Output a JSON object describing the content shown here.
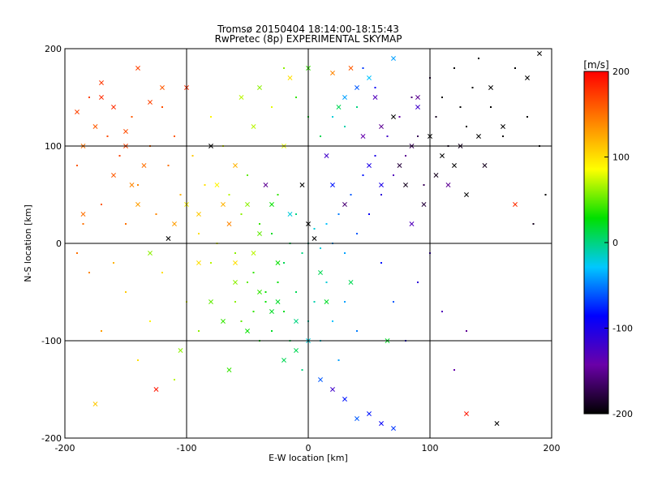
{
  "chart_data": {
    "type": "scatter",
    "title": "Tromsø 20150404 18:14:00-18:15:43",
    "subtitle": "RwPretec (8p) EXPERIMENTAL SKYMAP",
    "xlabel": "E-W location [km]",
    "ylabel": "N-S location [km]",
    "xlim": [
      -200,
      200
    ],
    "ylim": [
      -200,
      200
    ],
    "xticks": [
      "-200",
      "-100",
      "0",
      "100",
      "200"
    ],
    "yticks": [
      "-200",
      "-100",
      "0",
      "100",
      "200"
    ],
    "grid": true,
    "colorbar": {
      "label": "[m/s]",
      "range": [
        -200,
        200
      ],
      "ticks": [
        "200",
        "100",
        "0",
        "-100",
        "-200"
      ],
      "colors": [
        "#000000",
        "#6a00a8",
        "#0000ff",
        "#00c8ff",
        "#00e000",
        "#ffff00",
        "#ff8000",
        "#ff0000"
      ]
    },
    "series": [
      {
        "marker": "x",
        "points": [
          [
            -190,
            135,
            170
          ],
          [
            -185,
            100,
            150
          ],
          [
            -175,
            120,
            160
          ],
          [
            -170,
            165,
            175
          ],
          [
            -160,
            140,
            180
          ],
          [
            -150,
            115,
            165
          ],
          [
            -145,
            60,
            140
          ],
          [
            -140,
            40,
            130
          ],
          [
            -135,
            80,
            150
          ],
          [
            -130,
            145,
            170
          ],
          [
            -120,
            160,
            160
          ],
          [
            -115,
            5,
            -200
          ],
          [
            -110,
            20,
            130
          ],
          [
            -100,
            160,
            180
          ],
          [
            -90,
            30,
            110
          ],
          [
            -80,
            100,
            -200
          ],
          [
            -75,
            60,
            90
          ],
          [
            -70,
            40,
            120
          ],
          [
            -65,
            20,
            140
          ],
          [
            -60,
            -20,
            100
          ],
          [
            -55,
            150,
            70
          ],
          [
            -50,
            40,
            60
          ],
          [
            -45,
            120,
            70
          ],
          [
            -40,
            10,
            50
          ],
          [
            -35,
            60,
            -150
          ],
          [
            -30,
            40,
            30
          ],
          [
            -25,
            -60,
            20
          ],
          [
            -20,
            100,
            80
          ],
          [
            -15,
            30,
            -20
          ],
          [
            -10,
            -110,
            10
          ],
          [
            -5,
            60,
            -200
          ],
          [
            0,
            20,
            -200
          ],
          [
            5,
            5,
            -200
          ],
          [
            10,
            -30,
            10
          ],
          [
            15,
            90,
            -120
          ],
          [
            20,
            60,
            -80
          ],
          [
            25,
            140,
            10
          ],
          [
            30,
            40,
            -160
          ],
          [
            35,
            180,
            160
          ],
          [
            40,
            160,
            -60
          ],
          [
            45,
            110,
            -140
          ],
          [
            50,
            80,
            -100
          ],
          [
            55,
            150,
            -130
          ],
          [
            60,
            120,
            -150
          ],
          [
            65,
            -100,
            20
          ],
          [
            70,
            130,
            -200
          ],
          [
            75,
            80,
            -180
          ],
          [
            80,
            60,
            -190
          ],
          [
            85,
            100,
            -170
          ],
          [
            90,
            150,
            -150
          ],
          [
            95,
            40,
            -180
          ],
          [
            100,
            110,
            -200
          ],
          [
            105,
            70,
            -190
          ],
          [
            110,
            90,
            -200
          ],
          [
            115,
            60,
            -150
          ],
          [
            120,
            80,
            -200
          ],
          [
            125,
            100,
            -190
          ],
          [
            130,
            50,
            -200
          ],
          [
            140,
            110,
            -200
          ],
          [
            145,
            80,
            -190
          ],
          [
            150,
            160,
            -200
          ],
          [
            160,
            120,
            -200
          ],
          [
            170,
            40,
            180
          ],
          [
            180,
            170,
            -200
          ],
          [
            190,
            195,
            -200
          ],
          [
            -175,
            -165,
            110
          ],
          [
            -125,
            -150,
            190
          ],
          [
            -105,
            -110,
            60
          ],
          [
            -90,
            -20,
            100
          ],
          [
            -80,
            -60,
            50
          ],
          [
            -70,
            -80,
            40
          ],
          [
            -60,
            -40,
            60
          ],
          [
            -50,
            -90,
            30
          ],
          [
            -40,
            -50,
            40
          ],
          [
            -30,
            -70,
            20
          ],
          [
            -20,
            -120,
            10
          ],
          [
            -10,
            -80,
            0
          ],
          [
            0,
            -100,
            -20
          ],
          [
            10,
            -140,
            -60
          ],
          [
            20,
            -150,
            -120
          ],
          [
            30,
            -160,
            -80
          ],
          [
            40,
            -180,
            -60
          ],
          [
            50,
            -175,
            -80
          ],
          [
            60,
            -185,
            -90
          ],
          [
            70,
            -190,
            -70
          ],
          [
            -130,
            -10,
            60
          ],
          [
            -100,
            40,
            90
          ],
          [
            -60,
            80,
            120
          ],
          [
            -40,
            160,
            60
          ],
          [
            0,
            180,
            40
          ],
          [
            20,
            175,
            140
          ],
          [
            30,
            150,
            -40
          ],
          [
            50,
            170,
            -30
          ],
          [
            70,
            190,
            -40
          ],
          [
            90,
            140,
            -120
          ],
          [
            -150,
            100,
            170
          ],
          [
            -160,
            70,
            160
          ],
          [
            -185,
            30,
            150
          ],
          [
            -170,
            150,
            180
          ],
          [
            -140,
            180,
            170
          ],
          [
            130,
            -175,
            190
          ],
          [
            155,
            -185,
            -200
          ],
          [
            -25,
            -20,
            30
          ],
          [
            15,
            -60,
            20
          ],
          [
            35,
            -40,
            10
          ],
          [
            -45,
            -10,
            70
          ],
          [
            -65,
            -130,
            40
          ],
          [
            -15,
            170,
            100
          ],
          [
            60,
            60,
            -100
          ],
          [
            85,
            20,
            -130
          ]
        ]
      },
      {
        "marker": "dot",
        "points": [
          [
            -190,
            80,
            160
          ],
          [
            -185,
            20,
            150
          ],
          [
            -180,
            150,
            170
          ],
          [
            -170,
            40,
            160
          ],
          [
            -165,
            110,
            165
          ],
          [
            -155,
            90,
            170
          ],
          [
            -150,
            20,
            150
          ],
          [
            -145,
            130,
            160
          ],
          [
            -140,
            60,
            140
          ],
          [
            -130,
            100,
            155
          ],
          [
            -125,
            30,
            140
          ],
          [
            -120,
            140,
            165
          ],
          [
            -115,
            80,
            150
          ],
          [
            -110,
            110,
            160
          ],
          [
            -105,
            50,
            120
          ],
          [
            -95,
            90,
            110
          ],
          [
            -90,
            10,
            100
          ],
          [
            -85,
            60,
            100
          ],
          [
            -80,
            130,
            90
          ],
          [
            -75,
            0,
            80
          ],
          [
            -70,
            100,
            80
          ],
          [
            -65,
            50,
            70
          ],
          [
            -60,
            -10,
            60
          ],
          [
            -55,
            30,
            60
          ],
          [
            -50,
            70,
            50
          ],
          [
            -45,
            -30,
            40
          ],
          [
            -40,
            20,
            40
          ],
          [
            -35,
            -50,
            30
          ],
          [
            -30,
            10,
            20
          ],
          [
            -25,
            50,
            40
          ],
          [
            -20,
            -20,
            10
          ],
          [
            -15,
            0,
            10
          ],
          [
            -10,
            30,
            0
          ],
          [
            -5,
            -10,
            0
          ],
          [
            0,
            0,
            -10
          ],
          [
            5,
            15,
            -20
          ],
          [
            10,
            -5,
            -20
          ],
          [
            15,
            20,
            -30
          ],
          [
            20,
            0,
            -40
          ],
          [
            25,
            30,
            -50
          ],
          [
            30,
            -10,
            -40
          ],
          [
            35,
            50,
            -60
          ],
          [
            40,
            10,
            -60
          ],
          [
            45,
            70,
            -80
          ],
          [
            50,
            30,
            -90
          ],
          [
            55,
            90,
            -100
          ],
          [
            60,
            50,
            -110
          ],
          [
            65,
            110,
            -120
          ],
          [
            70,
            70,
            -130
          ],
          [
            75,
            130,
            -140
          ],
          [
            80,
            90,
            -150
          ],
          [
            85,
            150,
            -160
          ],
          [
            90,
            110,
            -170
          ],
          [
            95,
            60,
            -170
          ],
          [
            100,
            170,
            -180
          ],
          [
            105,
            130,
            -190
          ],
          [
            110,
            150,
            -200
          ],
          [
            115,
            100,
            -190
          ],
          [
            120,
            180,
            -200
          ],
          [
            125,
            140,
            -200
          ],
          [
            130,
            120,
            -200
          ],
          [
            135,
            160,
            -200
          ],
          [
            140,
            190,
            -200
          ],
          [
            150,
            140,
            -200
          ],
          [
            160,
            110,
            -200
          ],
          [
            170,
            180,
            -200
          ],
          [
            180,
            130,
            -200
          ],
          [
            190,
            100,
            -200
          ],
          [
            195,
            50,
            -200
          ],
          [
            185,
            20,
            -190
          ],
          [
            -60,
            -60,
            60
          ],
          [
            -55,
            -80,
            50
          ],
          [
            -50,
            -40,
            50
          ],
          [
            -45,
            -70,
            40
          ],
          [
            -40,
            -100,
            30
          ],
          [
            -35,
            -60,
            30
          ],
          [
            -30,
            -90,
            20
          ],
          [
            -25,
            -40,
            30
          ],
          [
            -20,
            -70,
            20
          ],
          [
            -15,
            -100,
            10
          ],
          [
            -10,
            -50,
            10
          ],
          [
            -5,
            -130,
            0
          ],
          [
            0,
            -80,
            -10
          ],
          [
            5,
            -60,
            -10
          ],
          [
            10,
            -100,
            -20
          ],
          [
            15,
            -40,
            -20
          ],
          [
            20,
            -80,
            -30
          ],
          [
            25,
            -120,
            -40
          ],
          [
            30,
            -60,
            -40
          ],
          [
            40,
            -90,
            -50
          ],
          [
            -80,
            -20,
            70
          ],
          [
            -90,
            -90,
            60
          ],
          [
            -100,
            -60,
            80
          ],
          [
            -110,
            -140,
            70
          ],
          [
            -120,
            -30,
            100
          ],
          [
            -130,
            -80,
            90
          ],
          [
            -140,
            -120,
            100
          ],
          [
            -150,
            -50,
            110
          ],
          [
            -160,
            -20,
            120
          ],
          [
            -170,
            -90,
            130
          ],
          [
            -180,
            -30,
            140
          ],
          [
            -190,
            -10,
            150
          ],
          [
            60,
            -20,
            -80
          ],
          [
            70,
            -60,
            -60
          ],
          [
            80,
            -100,
            -100
          ],
          [
            90,
            -40,
            -110
          ],
          [
            100,
            -10,
            -120
          ],
          [
            110,
            -70,
            -130
          ],
          [
            120,
            -130,
            -140
          ],
          [
            130,
            -90,
            -150
          ],
          [
            20,
            130,
            -20
          ],
          [
            30,
            120,
            -10
          ],
          [
            40,
            140,
            0
          ],
          [
            10,
            110,
            10
          ],
          [
            0,
            130,
            20
          ],
          [
            -10,
            150,
            40
          ],
          [
            -20,
            180,
            60
          ],
          [
            -30,
            140,
            80
          ],
          [
            45,
            180,
            -70
          ],
          [
            55,
            160,
            -90
          ]
        ]
      }
    ]
  }
}
